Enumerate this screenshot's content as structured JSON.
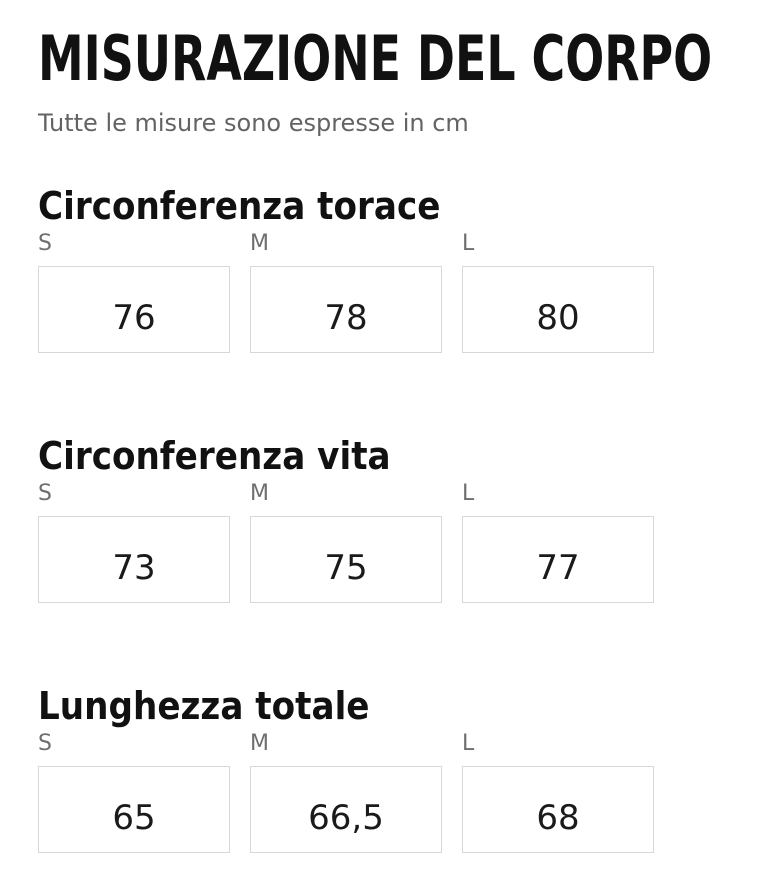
{
  "page": {
    "title": "MISURAZIONE DEL CORPO",
    "subtitle": "Tutte le misure sono espresse in cm"
  },
  "size_labels": [
    "S",
    "M",
    "L"
  ],
  "sections": [
    {
      "heading": "Circonferenza torace",
      "values": [
        "76",
        "78",
        "80"
      ]
    },
    {
      "heading": "Circonferenza vita",
      "values": [
        "73",
        "75",
        "77"
      ]
    },
    {
      "heading": "Lunghezza totale",
      "values": [
        "65",
        "66,5",
        "68"
      ]
    }
  ],
  "colors": {
    "background": "#ffffff",
    "heading_text": "#111111",
    "muted_text": "#636363",
    "size_label_text": "#6e6e6e",
    "box_border": "#d8d8d8",
    "value_text": "#1a1a1a"
  }
}
